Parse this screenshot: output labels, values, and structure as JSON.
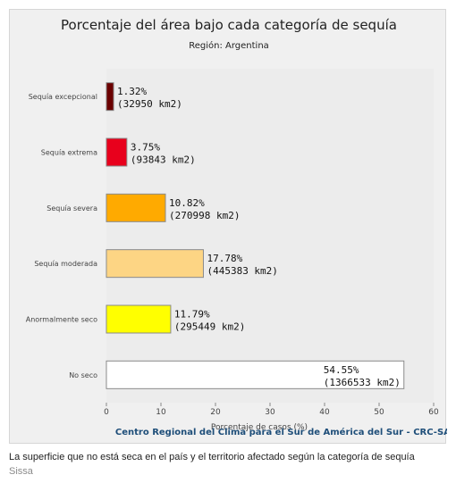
{
  "chart_data": {
    "type": "bar",
    "orientation": "horizontal",
    "title": "Porcentaje del área bajo cada categoría de sequía",
    "subtitle": "Región: Argentina",
    "xlabel": "Porcentaje de casos (%)",
    "ylabel": "",
    "xlim": [
      0,
      60
    ],
    "xticks": [
      0,
      10,
      20,
      30,
      40,
      50,
      60
    ],
    "grid": false,
    "legend": "none",
    "categories": [
      "Sequía excepcional",
      "Sequía extrema",
      "Sequía severa",
      "Sequía moderada",
      "Anormalmente seco",
      "No seco"
    ],
    "values": [
      1.32,
      3.75,
      10.82,
      17.78,
      11.79,
      54.55
    ],
    "value_labels": [
      "1.32%",
      "3.75%",
      "10.82%",
      "17.78%",
      "11.79%",
      "54.55%"
    ],
    "area_labels": [
      "(32950 km2)",
      "(93843 km2)",
      "(270998 km2)",
      "(445383 km2)",
      "(295449 km2)",
      "(1366533 km2)"
    ],
    "colors": [
      "#6b0000",
      "#e8001c",
      "#ffaa00",
      "#fdd584",
      "#ffff00",
      "#ffffff"
    ],
    "source": "Centro Regional del Clima para el Sur de América del Sur - CRC-SAS"
  },
  "caption": "La superficie que no está seca en el país y el territorio afectado según la categoría de sequía",
  "credit": "Sissa"
}
